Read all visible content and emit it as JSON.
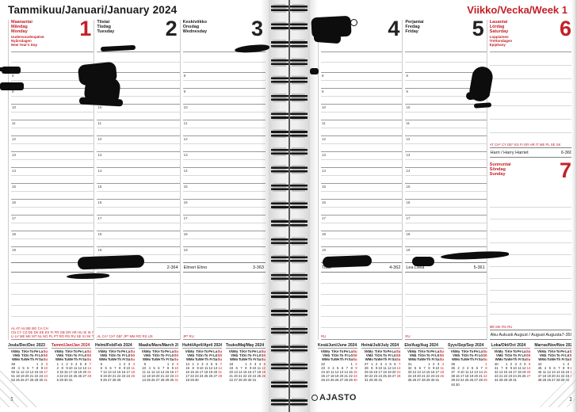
{
  "header": {
    "month_title": "Tammikuu/Januari/January 2024",
    "week_title": "Viikko/Vecka/Week 1"
  },
  "colors": {
    "accent_red": "#c32027",
    "ink": "#0d0d0d"
  },
  "hours": [
    "8",
    "9",
    "10",
    "11",
    "12",
    "13",
    "14",
    "15",
    "16",
    "17",
    "18",
    "19"
  ],
  "left_days": [
    {
      "variant": "red",
      "names": [
        "Maanantai",
        "Måndag",
        "Monday"
      ],
      "num": "1",
      "holiday": [
        "Uudenvuodenpäivä",
        "Nyårsdagen",
        "New Year's Day"
      ],
      "nameday": {
        "text": "",
        "num": ""
      },
      "codes": [
        "AL AT AU BE BG CA CH",
        "CN CY CZ DE DK EE ES FI FR GB GR HR HU IE IS IT JP LT",
        "LI LV ME MK MT NL NO PL PT RO RS RU SE SI SK TR US"
      ]
    },
    {
      "variant": "black",
      "names": [
        "Tiistai",
        "Tisdag",
        "Tuesday"
      ],
      "num": "2",
      "holiday": [],
      "nameday": {
        "text": "",
        "num": "2-364"
      },
      "codes": [
        "AL CA* CH* GB* JP* MM RO RS US"
      ]
    },
    {
      "variant": "black",
      "names": [
        "Keskiviikko",
        "Onsdag",
        "Wednesday"
      ],
      "num": "3",
      "holiday": [],
      "nameday": {
        "text": "Elmeri Elmo",
        "num": "3-363"
      },
      "codes": [
        "JP* RU"
      ]
    }
  ],
  "right_days": [
    {
      "variant": "black",
      "names": [
        "Torstai",
        "Torsdag",
        "Thursday"
      ],
      "num": "4",
      "holiday": [],
      "nameday": {
        "text": "Titus",
        "num": "4-362"
      },
      "codes": [
        "RU"
      ]
    },
    {
      "variant": "black",
      "names": [
        "Perjantai",
        "Fredag",
        "Friday"
      ],
      "num": "5",
      "holiday": [],
      "nameday": {
        "text": "Lea Leea",
        "num": "5-361"
      },
      "codes": [
        "RU"
      ]
    }
  ],
  "saturday": {
    "names": [
      "Lauantai",
      "Lördag",
      "Saturday"
    ],
    "num": "6",
    "holiday": [
      "Loppiainen",
      "Trettondagen",
      "Epiphany"
    ],
    "codes": [
      "AT CH* CY DE* ES FI GR HR IT ME PL SE SK"
    ],
    "nameday": {
      "text": "Harri / Harry Harriet",
      "num": "6-360"
    }
  },
  "sunday": {
    "names": [
      "Sunnuntai",
      "Söndag",
      "Sunday"
    ],
    "num": "7",
    "codes": [
      "ME MK RS RU"
    ],
    "nameday": {
      "text": "Aku Aukusti August / August Augusta",
      "num": "7-359"
    }
  },
  "footer": {
    "page_number_left": "1",
    "page_number_right": "1",
    "logo_text": "AJASTO"
  },
  "minical_dow": [
    [
      "Vk",
      "Ma",
      "Ti",
      "Ke",
      "To",
      "Pe",
      "La",
      "Su"
    ],
    [
      "V",
      "Må",
      "Ti",
      "On",
      "To",
      "Fr",
      "Lö",
      "Sö"
    ],
    [
      "W",
      "Mo",
      "Tu",
      "We",
      "Th",
      "Fr",
      "Sa",
      "Su"
    ]
  ],
  "minicals_left": [
    {
      "title": "Joulu/Dec/Dec 2023",
      "variant": "normal",
      "weeks": [
        [
          "48",
          "",
          "",
          "",
          "",
          "1",
          "2",
          "3"
        ],
        [
          "49",
          "4",
          "5",
          "6",
          "7",
          "8",
          "9",
          "10"
        ],
        [
          "50",
          "11",
          "12",
          "13",
          "14",
          "15",
          "16",
          "17"
        ],
        [
          "51",
          "18",
          "19",
          "20",
          "21",
          "22",
          "23",
          "24"
        ],
        [
          "52",
          "25",
          "26",
          "27",
          "28",
          "29",
          "30",
          "31"
        ]
      ]
    },
    {
      "title": "Tammi/Jan/Jan 2024",
      "variant": "current",
      "weeks": [
        [
          "1",
          "1",
          "2",
          "3",
          "4",
          "5",
          "6",
          "7"
        ],
        [
          "2",
          "8",
          "9",
          "10",
          "11",
          "12",
          "13",
          "14"
        ],
        [
          "3",
          "15",
          "16",
          "17",
          "18",
          "19",
          "20",
          "21"
        ],
        [
          "4",
          "22",
          "23",
          "24",
          "25",
          "26",
          "27",
          "28"
        ],
        [
          "5",
          "29",
          "30",
          "31",
          "",
          "",
          "",
          ""
        ]
      ]
    },
    {
      "title": "Helmi/Feb/Feb 2024",
      "variant": "normal",
      "weeks": [
        [
          "5",
          "",
          "",
          "",
          "1",
          "2",
          "3",
          "4"
        ],
        [
          "6",
          "5",
          "6",
          "7",
          "8",
          "9",
          "10",
          "11"
        ],
        [
          "7",
          "12",
          "13",
          "14",
          "15",
          "16",
          "17",
          "18"
        ],
        [
          "8",
          "19",
          "20",
          "21",
          "22",
          "23",
          "24",
          "25"
        ],
        [
          "9",
          "26",
          "27",
          "28",
          "29",
          "",
          "",
          ""
        ]
      ]
    },
    {
      "title": "Maalis/Mars/March 2024",
      "variant": "normal",
      "weeks": [
        [
          "9",
          "",
          "",
          "",
          "",
          "1",
          "2",
          "3"
        ],
        [
          "10",
          "4",
          "5",
          "6",
          "7",
          "8",
          "9",
          "10"
        ],
        [
          "11",
          "11",
          "12",
          "13",
          "14",
          "15",
          "16",
          "17"
        ],
        [
          "12",
          "18",
          "19",
          "20",
          "21",
          "22",
          "23",
          "24"
        ],
        [
          "13",
          "25",
          "26",
          "27",
          "28",
          "29",
          "30",
          "31"
        ]
      ]
    },
    {
      "title": "Huhti/April/April 2024",
      "variant": "normal",
      "weeks": [
        [
          "14",
          "1",
          "2",
          "3",
          "4",
          "5",
          "6",
          "7"
        ],
        [
          "15",
          "8",
          "9",
          "10",
          "11",
          "12",
          "13",
          "14"
        ],
        [
          "16",
          "15",
          "16",
          "17",
          "18",
          "19",
          "20",
          "21"
        ],
        [
          "17",
          "22",
          "23",
          "24",
          "25",
          "26",
          "27",
          "28"
        ],
        [
          "18",
          "29",
          "30",
          "",
          "",
          "",
          "",
          ""
        ]
      ]
    },
    {
      "title": "Touko/Maj/May 2024",
      "variant": "normal",
      "weeks": [
        [
          "18",
          "",
          "",
          "1",
          "2",
          "3",
          "4",
          "5"
        ],
        [
          "19",
          "6",
          "7",
          "8",
          "9",
          "10",
          "11",
          "12"
        ],
        [
          "20",
          "13",
          "14",
          "15",
          "16",
          "17",
          "18",
          "19"
        ],
        [
          "21",
          "20",
          "21",
          "22",
          "23",
          "24",
          "25",
          "26"
        ],
        [
          "22",
          "27",
          "28",
          "29",
          "30",
          "31",
          "",
          ""
        ]
      ]
    }
  ],
  "minicals_right": [
    {
      "title": "Kesä/Juni/June 2024",
      "variant": "normal",
      "weeks": [
        [
          "22",
          "",
          "",
          "",
          "",
          "",
          "1",
          "2"
        ],
        [
          "23",
          "3",
          "4",
          "5",
          "6",
          "7",
          "8",
          "9"
        ],
        [
          "24",
          "10",
          "11",
          "12",
          "13",
          "14",
          "15",
          "16"
        ],
        [
          "25",
          "17",
          "18",
          "19",
          "20",
          "21",
          "22",
          "23"
        ],
        [
          "26",
          "24",
          "25",
          "26",
          "27",
          "28",
          "29",
          "30"
        ]
      ]
    },
    {
      "title": "Heinä/Juli/July 2024",
      "variant": "normal",
      "weeks": [
        [
          "27",
          "1",
          "2",
          "3",
          "4",
          "5",
          "6",
          "7"
        ],
        [
          "28",
          "8",
          "9",
          "10",
          "11",
          "12",
          "13",
          "14"
        ],
        [
          "29",
          "15",
          "16",
          "17",
          "18",
          "19",
          "20",
          "21"
        ],
        [
          "30",
          "22",
          "23",
          "24",
          "25",
          "26",
          "27",
          "28"
        ],
        [
          "31",
          "29",
          "30",
          "31",
          "",
          "",
          "",
          ""
        ]
      ]
    },
    {
      "title": "Elo/Aug/Aug 2024",
      "variant": "normal",
      "weeks": [
        [
          "31",
          "",
          "",
          "",
          "1",
          "2",
          "3",
          "4"
        ],
        [
          "32",
          "5",
          "6",
          "7",
          "8",
          "9",
          "10",
          "11"
        ],
        [
          "33",
          "12",
          "13",
          "14",
          "15",
          "16",
          "17",
          "18"
        ],
        [
          "34",
          "19",
          "20",
          "21",
          "22",
          "23",
          "24",
          "25"
        ],
        [
          "35",
          "26",
          "27",
          "28",
          "29",
          "30",
          "31",
          ""
        ]
      ]
    },
    {
      "title": "Syys/Sep/Sep 2024",
      "variant": "normal",
      "weeks": [
        [
          "35",
          "",
          "",
          "",
          "",
          "",
          "",
          "1"
        ],
        [
          "36",
          "2",
          "3",
          "4",
          "5",
          "6",
          "7",
          "8"
        ],
        [
          "37",
          "9",
          "10",
          "11",
          "12",
          "13",
          "14",
          "15"
        ],
        [
          "38",
          "16",
          "17",
          "18",
          "19",
          "20",
          "21",
          "22"
        ],
        [
          "39",
          "23",
          "24",
          "25",
          "26",
          "27",
          "28",
          "29"
        ],
        [
          "40",
          "30",
          "",
          "",
          "",
          "",
          "",
          ""
        ]
      ]
    },
    {
      "title": "Loka/Okt/Oct 2024",
      "variant": "normal",
      "weeks": [
        [
          "40",
          "",
          "1",
          "2",
          "3",
          "4",
          "5",
          "6"
        ],
        [
          "41",
          "7",
          "8",
          "9",
          "10",
          "11",
          "12",
          "13"
        ],
        [
          "42",
          "14",
          "15",
          "16",
          "17",
          "18",
          "19",
          "20"
        ],
        [
          "43",
          "21",
          "22",
          "23",
          "24",
          "25",
          "26",
          "27"
        ],
        [
          "44",
          "28",
          "29",
          "30",
          "31",
          "",
          "",
          ""
        ]
      ]
    },
    {
      "title": "Marras/Nov/Nov 2024",
      "variant": "normal",
      "weeks": [
        [
          "44",
          "",
          "",
          "",
          "",
          "1",
          "2",
          "3"
        ],
        [
          "45",
          "4",
          "5",
          "6",
          "7",
          "8",
          "9",
          "10"
        ],
        [
          "46",
          "11",
          "12",
          "13",
          "14",
          "15",
          "16",
          "17"
        ],
        [
          "47",
          "18",
          "19",
          "20",
          "21",
          "22",
          "23",
          "24"
        ],
        [
          "48",
          "25",
          "26",
          "27",
          "28",
          "29",
          "30",
          ""
        ]
      ]
    }
  ]
}
